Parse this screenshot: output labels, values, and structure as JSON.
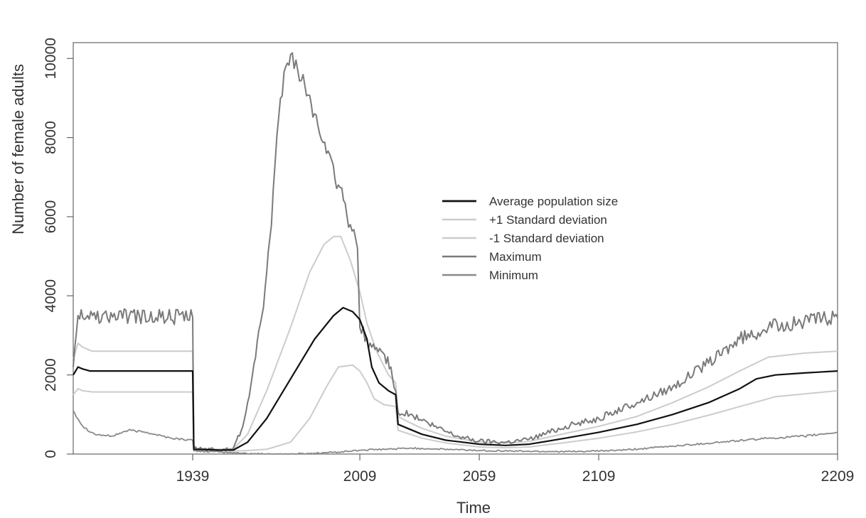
{
  "chart_data": {
    "type": "line",
    "title": "",
    "xlabel": "Time",
    "ylabel": "Number of female adults",
    "xlim": [
      1889,
      2209
    ],
    "ylim": [
      0,
      10400
    ],
    "x_ticks": [
      {
        "value": 1939,
        "label": "1939"
      },
      {
        "value": 2009,
        "label": "2009"
      },
      {
        "value": 2059,
        "label": "2059"
      },
      {
        "value": 2109,
        "label": "2109"
      },
      {
        "value": 2209,
        "label": "2209"
      }
    ],
    "y_ticks": [
      {
        "value": 0,
        "label": "0"
      },
      {
        "value": 2000,
        "label": "2000"
      },
      {
        "value": 4000,
        "label": "4000"
      },
      {
        "value": 6000,
        "label": "6000"
      },
      {
        "value": 8000,
        "label": "8000"
      },
      {
        "value": 10000,
        "label": "10000"
      }
    ],
    "grid": false,
    "legend_position": "center-right",
    "series": [
      {
        "name": "Average population size",
        "color": "#111111",
        "width": 2.2,
        "noise": 0,
        "points": [
          [
            1889,
            2000
          ],
          [
            1891,
            2200
          ],
          [
            1893,
            2150
          ],
          [
            1896,
            2100
          ],
          [
            1900,
            2100
          ],
          [
            1920,
            2100
          ],
          [
            1939,
            2100
          ],
          [
            1939.5,
            120
          ],
          [
            1950,
            100
          ],
          [
            1956,
            100
          ],
          [
            1962,
            300
          ],
          [
            1970,
            900
          ],
          [
            1980,
            1900
          ],
          [
            1990,
            2900
          ],
          [
            1998,
            3500
          ],
          [
            2002,
            3700
          ],
          [
            2006,
            3600
          ],
          [
            2009,
            3400
          ],
          [
            2012,
            2900
          ],
          [
            2014,
            2200
          ],
          [
            2017,
            1800
          ],
          [
            2021,
            1600
          ],
          [
            2024,
            1500
          ],
          [
            2025,
            750
          ],
          [
            2029,
            650
          ],
          [
            2035,
            500
          ],
          [
            2045,
            350
          ],
          [
            2059,
            250
          ],
          [
            2070,
            220
          ],
          [
            2080,
            250
          ],
          [
            2095,
            400
          ],
          [
            2109,
            550
          ],
          [
            2125,
            750
          ],
          [
            2140,
            1000
          ],
          [
            2155,
            1300
          ],
          [
            2168,
            1650
          ],
          [
            2175,
            1900
          ],
          [
            2183,
            2000
          ],
          [
            2195,
            2050
          ],
          [
            2209,
            2100
          ]
        ]
      },
      {
        "name": "+1 Standard deviation",
        "color": "#cccccc",
        "width": 2,
        "noise": 0,
        "points": [
          [
            1889,
            2400
          ],
          [
            1891,
            2800
          ],
          [
            1893,
            2700
          ],
          [
            1897,
            2600
          ],
          [
            1939,
            2600
          ],
          [
            1939.5,
            150
          ],
          [
            1950,
            120
          ],
          [
            1956,
            130
          ],
          [
            1962,
            500
          ],
          [
            1970,
            1600
          ],
          [
            1980,
            3200
          ],
          [
            1988,
            4600
          ],
          [
            1994,
            5300
          ],
          [
            1998,
            5500
          ],
          [
            2001,
            5500
          ],
          [
            2005,
            4900
          ],
          [
            2009,
            4100
          ],
          [
            2012,
            3300
          ],
          [
            2016,
            2600
          ],
          [
            2021,
            2000
          ],
          [
            2024,
            1800
          ],
          [
            2025,
            950
          ],
          [
            2029,
            820
          ],
          [
            2035,
            650
          ],
          [
            2045,
            450
          ],
          [
            2059,
            300
          ],
          [
            2070,
            280
          ],
          [
            2080,
            320
          ],
          [
            2095,
            520
          ],
          [
            2109,
            700
          ],
          [
            2125,
            950
          ],
          [
            2140,
            1300
          ],
          [
            2155,
            1700
          ],
          [
            2168,
            2100
          ],
          [
            2180,
            2450
          ],
          [
            2195,
            2550
          ],
          [
            2209,
            2600
          ]
        ]
      },
      {
        "name": "-1 Standard deviation",
        "color": "#cccccc",
        "width": 2,
        "noise": 0,
        "points": [
          [
            1889,
            1500
          ],
          [
            1891,
            1650
          ],
          [
            1893,
            1600
          ],
          [
            1897,
            1570
          ],
          [
            1939,
            1570
          ],
          [
            1939.5,
            90
          ],
          [
            1950,
            80
          ],
          [
            1960,
            80
          ],
          [
            1970,
            120
          ],
          [
            1980,
            300
          ],
          [
            1988,
            900
          ],
          [
            1995,
            1700
          ],
          [
            2000,
            2200
          ],
          [
            2006,
            2250
          ],
          [
            2009,
            2100
          ],
          [
            2012,
            1800
          ],
          [
            2015,
            1400
          ],
          [
            2019,
            1250
          ],
          [
            2024,
            1200
          ],
          [
            2025,
            600
          ],
          [
            2029,
            520
          ],
          [
            2035,
            400
          ],
          [
            2045,
            280
          ],
          [
            2059,
            180
          ],
          [
            2070,
            160
          ],
          [
            2080,
            180
          ],
          [
            2095,
            290
          ],
          [
            2109,
            400
          ],
          [
            2125,
            560
          ],
          [
            2140,
            750
          ],
          [
            2155,
            980
          ],
          [
            2168,
            1200
          ],
          [
            2183,
            1450
          ],
          [
            2209,
            1600
          ]
        ]
      },
      {
        "name": "Maximum",
        "color": "#7a7a7a",
        "width": 2,
        "noise": 110,
        "points": [
          [
            1889,
            2200
          ],
          [
            1891,
            3500
          ],
          [
            1895,
            3500
          ],
          [
            1939,
            3450
          ],
          [
            1939.5,
            150
          ],
          [
            1950,
            100
          ],
          [
            1956,
            150
          ],
          [
            1960,
            700
          ],
          [
            1964,
            2000
          ],
          [
            1968,
            3500
          ],
          [
            1972,
            5800
          ],
          [
            1975,
            8500
          ],
          [
            1978,
            9800
          ],
          [
            1980,
            10100
          ],
          [
            1983,
            9700
          ],
          [
            1986,
            9300
          ],
          [
            1990,
            8600
          ],
          [
            1995,
            7600
          ],
          [
            2000,
            6800
          ],
          [
            2005,
            5800
          ],
          [
            2008,
            5200
          ],
          [
            2009,
            3200
          ],
          [
            2014,
            2700
          ],
          [
            2018,
            2600
          ],
          [
            2022,
            2200
          ],
          [
            2024,
            1600
          ],
          [
            2025,
            1050
          ],
          [
            2030,
            1000
          ],
          [
            2040,
            700
          ],
          [
            2050,
            450
          ],
          [
            2059,
            330
          ],
          [
            2070,
            300
          ],
          [
            2080,
            380
          ],
          [
            2095,
            700
          ],
          [
            2109,
            900
          ],
          [
            2125,
            1300
          ],
          [
            2140,
            1700
          ],
          [
            2155,
            2300
          ],
          [
            2168,
            2900
          ],
          [
            2180,
            3200
          ],
          [
            2195,
            3350
          ],
          [
            2209,
            3450
          ]
        ]
      },
      {
        "name": "Minimum",
        "color": "#8a8a8a",
        "width": 1.8,
        "noise": 45,
        "points": [
          [
            1889,
            1100
          ],
          [
            1893,
            700
          ],
          [
            1898,
            500
          ],
          [
            1905,
            450
          ],
          [
            1912,
            600
          ],
          [
            1920,
            550
          ],
          [
            1930,
            400
          ],
          [
            1939,
            350
          ],
          [
            1939.5,
            80
          ],
          [
            1950,
            50
          ],
          [
            1960,
            20
          ],
          [
            1970,
            0
          ],
          [
            1980,
            0
          ],
          [
            1990,
            20
          ],
          [
            2000,
            50
          ],
          [
            2010,
            100
          ],
          [
            2020,
            120
          ],
          [
            2030,
            150
          ],
          [
            2040,
            130
          ],
          [
            2059,
            90
          ],
          [
            2080,
            70
          ],
          [
            2100,
            60
          ],
          [
            2120,
            100
          ],
          [
            2140,
            200
          ],
          [
            2160,
            300
          ],
          [
            2180,
            400
          ],
          [
            2195,
            450
          ],
          [
            2209,
            550
          ]
        ]
      }
    ]
  }
}
